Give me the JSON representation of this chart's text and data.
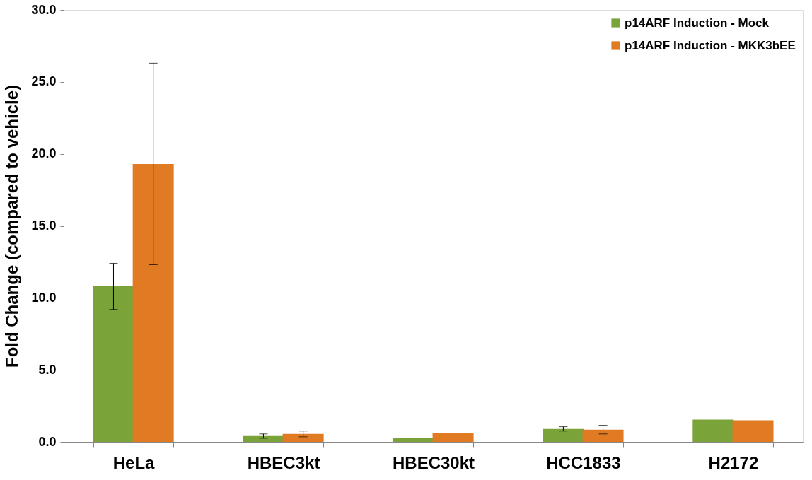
{
  "chart_data": {
    "type": "bar",
    "ylabel": "Fold Change (compared to vehicle)",
    "categories": [
      "HeLa",
      "HBEC3kt",
      "HBEC30kt",
      "HCC1833",
      "H2172"
    ],
    "series": [
      {
        "name": "p14ARF Induction - Mock",
        "color": "#7aa33a",
        "values": [
          10.8,
          0.4,
          0.3,
          0.9,
          1.55
        ],
        "errors": [
          1.6,
          0.15,
          null,
          0.15,
          null
        ]
      },
      {
        "name": "p14ARF Induction - MKK3bEE",
        "color": "#e07b24",
        "values": [
          19.3,
          0.55,
          0.6,
          0.85,
          1.5
        ],
        "errors": [
          7.0,
          0.2,
          null,
          0.3,
          null
        ]
      }
    ],
    "ylim": [
      0,
      30
    ],
    "yticks": [
      {
        "value": 0,
        "label": "0.0"
      },
      {
        "value": 5,
        "label": "5.0"
      },
      {
        "value": 10,
        "label": "10.0"
      },
      {
        "value": 15,
        "label": "15.0"
      },
      {
        "value": 20,
        "label": "20.0"
      },
      {
        "value": 25,
        "label": "25.0"
      },
      {
        "value": 30,
        "label": "30.0"
      }
    ],
    "grid": false,
    "legend": "top right"
  }
}
